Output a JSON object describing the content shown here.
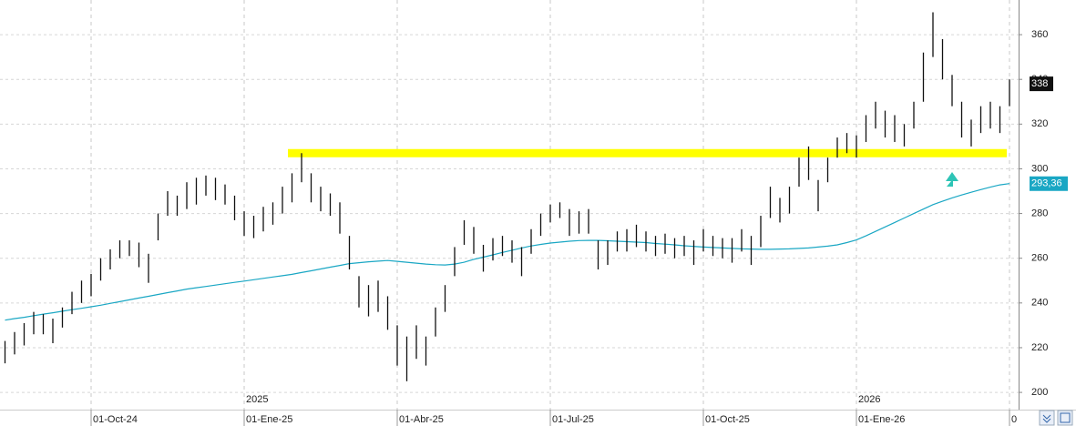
{
  "chart_data": {
    "type": "ohlc",
    "categories": [
      null,
      null,
      null,
      null,
      null,
      null,
      null,
      null,
      null,
      "01-Oct-24",
      null,
      null,
      null,
      null,
      null,
      null,
      null,
      null,
      null,
      null,
      null,
      null,
      null,
      null,
      null,
      "01-Ene-25",
      null,
      null,
      null,
      null,
      null,
      null,
      null,
      null,
      null,
      null,
      null,
      null,
      null,
      null,
      null,
      "01-Abr-25",
      null,
      null,
      null,
      null,
      null,
      null,
      null,
      null,
      null,
      null,
      null,
      null,
      null,
      null,
      null,
      "01-Jul-25",
      null,
      null,
      null,
      null,
      null,
      null,
      null,
      null,
      null,
      null,
      null,
      null,
      null,
      null,
      null,
      "01-Oct-25",
      null,
      null,
      null,
      null,
      null,
      null,
      null,
      null,
      null,
      null,
      null,
      null,
      null,
      null,
      null,
      "01-Ene-26",
      null,
      null,
      null,
      null,
      null,
      null,
      null,
      null,
      null,
      null,
      null,
      null,
      null,
      null,
      null,
      "0"
    ],
    "year_labels": [
      null,
      null,
      null,
      null,
      null,
      null,
      null,
      null,
      null,
      null,
      null,
      null,
      null,
      null,
      null,
      null,
      null,
      null,
      null,
      null,
      null,
      null,
      null,
      null,
      null,
      "2025",
      null,
      null,
      null,
      null,
      null,
      null,
      null,
      null,
      null,
      null,
      null,
      null,
      null,
      null,
      null,
      null,
      null,
      null,
      null,
      null,
      null,
      null,
      null,
      null,
      null,
      null,
      null,
      null,
      null,
      null,
      null,
      null,
      null,
      null,
      null,
      null,
      null,
      null,
      null,
      null,
      null,
      null,
      null,
      null,
      null,
      null,
      null,
      null,
      null,
      null,
      null,
      null,
      null,
      null,
      null,
      null,
      null,
      null,
      null,
      null,
      null,
      null,
      null,
      "2026",
      null,
      null,
      null,
      null,
      null,
      null,
      null,
      null,
      null,
      null,
      null,
      null,
      null,
      null,
      null,
      null
    ],
    "high": [
      223,
      227,
      231,
      236,
      235,
      233,
      238,
      245,
      250,
      253,
      260,
      264,
      268,
      268,
      267,
      262,
      280,
      290,
      288,
      294,
      296,
      297,
      296,
      293,
      288,
      281,
      279,
      283,
      285,
      292,
      298,
      307,
      298,
      292,
      289,
      285,
      270,
      252,
      248,
      250,
      243,
      230,
      225,
      230,
      225,
      238,
      248,
      265,
      277,
      274,
      266,
      269,
      270,
      268,
      265,
      273,
      280,
      284,
      285,
      282,
      281,
      282,
      268,
      268,
      272,
      273,
      275,
      272,
      270,
      271,
      269,
      270,
      268,
      273,
      270,
      269,
      269,
      273,
      270,
      279,
      292,
      287,
      292,
      305,
      310,
      295,
      305,
      314,
      316,
      315,
      324,
      330,
      326,
      324,
      320,
      330,
      352,
      370,
      358,
      342,
      330,
      322,
      328,
      330,
      328,
      340
    ],
    "low": [
      213,
      217,
      221,
      226,
      226,
      222,
      229,
      235,
      240,
      243,
      250,
      255,
      260,
      261,
      256,
      249,
      268,
      279,
      279,
      282,
      284,
      288,
      286,
      284,
      277,
      270,
      269,
      272,
      275,
      280,
      285,
      294,
      285,
      281,
      279,
      271,
      255,
      238,
      234,
      236,
      228,
      212,
      205,
      215,
      212,
      225,
      236,
      252,
      266,
      262,
      254,
      259,
      261,
      258,
      252,
      262,
      270,
      276,
      278,
      270,
      271,
      271,
      255,
      257,
      263,
      263,
      265,
      263,
      261,
      262,
      260,
      261,
      257,
      263,
      261,
      260,
      258,
      263,
      257,
      265,
      278,
      276,
      280,
      292,
      295,
      281,
      294,
      305,
      307,
      305,
      312,
      318,
      314,
      312,
      310,
      318,
      330,
      350,
      340,
      328,
      314,
      310,
      316,
      318,
      316,
      328
    ],
    "color": "#111111",
    "ma": {
      "color": "#1aa7c4",
      "values": [
        232.3,
        233,
        233.6,
        234.3,
        235,
        235.6,
        236.3,
        237,
        237.6,
        238.3,
        239,
        239.8,
        240.6,
        241.4,
        242.2,
        243,
        243.8,
        244.6,
        245.4,
        246.2,
        246.8,
        247.4,
        248,
        248.6,
        249.2,
        249.8,
        250.4,
        251,
        251.6,
        252.2,
        252.8,
        253.6,
        254.4,
        255.2,
        256,
        256.8,
        257.6,
        258,
        258.4,
        258.7,
        259,
        258.6,
        258.2,
        257.8,
        257.4,
        257.1,
        257,
        257.4,
        258.2,
        259.5,
        260.5,
        261.5,
        262.6,
        263.6,
        264.6,
        265.5,
        266.2,
        266.8,
        267.2,
        267.6,
        267.9,
        268,
        268,
        267.8,
        267.6,
        267.4,
        267.2,
        267,
        266.6,
        266.3,
        266,
        265.6,
        265.3,
        265,
        264.8,
        264.6,
        264.4,
        264.2,
        264.1,
        264,
        264,
        264.1,
        264.2,
        264.4,
        264.6,
        265,
        265.4,
        266,
        267,
        268.2,
        270,
        272,
        274,
        276,
        278,
        280,
        282,
        284,
        285.5,
        287,
        288.3,
        289.5,
        290.7,
        291.8,
        292.8,
        293.4
      ]
    },
    "hline": {
      "value": 307,
      "color": "#ffff00"
    },
    "last_price": 338,
    "ma_last": {
      "value": 293.36,
      "label": "293,36"
    },
    "ylim": [
      192.3,
      375.5
    ],
    "yticks": [
      200,
      220,
      240,
      260,
      280,
      300,
      320,
      340,
      360
    ],
    "grid": true
  }
}
